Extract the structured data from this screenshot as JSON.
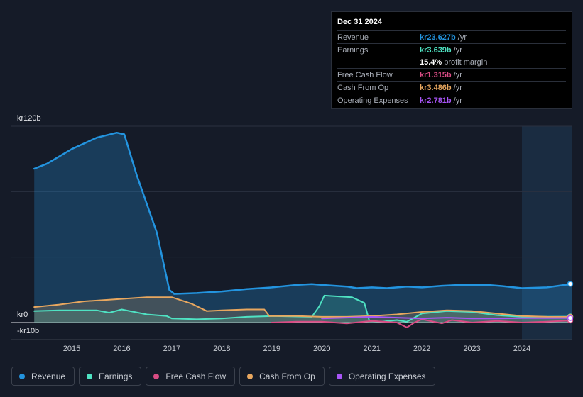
{
  "chart_data": {
    "type": "area",
    "y_tick_labels": [
      "kr120b",
      "kr0",
      "-kr10b"
    ],
    "ylim": [
      -10,
      120
    ],
    "xlim": [
      2014.2,
      2025.0
    ],
    "x_ticks": [
      2015,
      2016,
      2017,
      2018,
      2019,
      2020,
      2021,
      2022,
      2023,
      2024
    ],
    "forecast_from": 2024.0,
    "series": [
      {
        "name": "Revenue",
        "color": "#2394df",
        "points": [
          [
            2014.25,
            94
          ],
          [
            2014.5,
            97
          ],
          [
            2015.0,
            106
          ],
          [
            2015.5,
            113
          ],
          [
            2015.9,
            116
          ],
          [
            2016.05,
            115
          ],
          [
            2016.3,
            90
          ],
          [
            2016.7,
            55
          ],
          [
            2016.95,
            20
          ],
          [
            2017.05,
            17.5
          ],
          [
            2017.5,
            18
          ],
          [
            2018.0,
            19
          ],
          [
            2018.5,
            20.5
          ],
          [
            2019.0,
            21.5
          ],
          [
            2019.5,
            23
          ],
          [
            2019.8,
            23.5
          ],
          [
            2020.0,
            23
          ],
          [
            2020.5,
            22
          ],
          [
            2020.7,
            21
          ],
          [
            2021.0,
            21.5
          ],
          [
            2021.3,
            21
          ],
          [
            2021.7,
            22
          ],
          [
            2022.0,
            21.5
          ],
          [
            2022.4,
            22.5
          ],
          [
            2022.8,
            23
          ],
          [
            2023.3,
            23
          ],
          [
            2023.6,
            22.3
          ],
          [
            2024.0,
            21
          ],
          [
            2024.5,
            21.5
          ],
          [
            2025.0,
            23.627
          ]
        ]
      },
      {
        "name": "Earnings",
        "color": "#4fe3c3",
        "points": [
          [
            2014.25,
            7
          ],
          [
            2014.75,
            7.5
          ],
          [
            2015.5,
            7.5
          ],
          [
            2015.75,
            6
          ],
          [
            2016.0,
            8
          ],
          [
            2016.5,
            5
          ],
          [
            2016.9,
            4
          ],
          [
            2017.0,
            2.5
          ],
          [
            2017.5,
            2
          ],
          [
            2018.0,
            2.5
          ],
          [
            2018.5,
            3.5
          ],
          [
            2019.0,
            4
          ],
          [
            2019.8,
            3.5
          ],
          [
            2019.95,
            10
          ],
          [
            2020.05,
            16.5
          ],
          [
            2020.6,
            15.5
          ],
          [
            2020.85,
            12
          ],
          [
            2020.95,
            1
          ],
          [
            2021.2,
            0.5
          ],
          [
            2021.5,
            1.5
          ],
          [
            2021.7,
            0.5
          ],
          [
            2022.0,
            5.5
          ],
          [
            2022.5,
            7
          ],
          [
            2023.0,
            6.5
          ],
          [
            2023.5,
            4.5
          ],
          [
            2024.0,
            3.5
          ],
          [
            2024.5,
            3.6
          ],
          [
            2025.0,
            3.639
          ]
        ]
      },
      {
        "name": "Free Cash Flow",
        "color": "#d94c84",
        "points": [
          [
            2019.0,
            0
          ],
          [
            2019.5,
            0.5
          ],
          [
            2020.0,
            0.5
          ],
          [
            2020.5,
            -0.5
          ],
          [
            2021.0,
            1
          ],
          [
            2021.5,
            0
          ],
          [
            2021.7,
            -3
          ],
          [
            2021.85,
            0
          ],
          [
            2022.0,
            2
          ],
          [
            2022.4,
            -0.5
          ],
          [
            2022.6,
            1.5
          ],
          [
            2023.0,
            0
          ],
          [
            2023.5,
            1
          ],
          [
            2024.0,
            0
          ],
          [
            2024.5,
            0.5
          ],
          [
            2025.0,
            1.315
          ]
        ]
      },
      {
        "name": "Cash From Op",
        "color": "#e8a75f",
        "points": [
          [
            2014.25,
            9.5
          ],
          [
            2014.75,
            11
          ],
          [
            2015.25,
            13
          ],
          [
            2015.75,
            14
          ],
          [
            2016.25,
            15
          ],
          [
            2016.5,
            15.5
          ],
          [
            2017.0,
            15.5
          ],
          [
            2017.4,
            11.5
          ],
          [
            2017.7,
            7
          ],
          [
            2018.0,
            7.5
          ],
          [
            2018.5,
            8
          ],
          [
            2018.85,
            8
          ],
          [
            2018.95,
            4
          ],
          [
            2019.5,
            4
          ],
          [
            2020.0,
            3.5
          ],
          [
            2020.5,
            3.5
          ],
          [
            2021.0,
            4
          ],
          [
            2021.5,
            5
          ],
          [
            2022.0,
            6.5
          ],
          [
            2022.5,
            7.5
          ],
          [
            2023.0,
            7
          ],
          [
            2023.5,
            5.5
          ],
          [
            2024.0,
            4
          ],
          [
            2024.5,
            3.5
          ],
          [
            2025.0,
            3.486
          ]
        ]
      },
      {
        "name": "Operating Expenses",
        "color": "#a855f7",
        "points": [
          [
            2020.0,
            2.5
          ],
          [
            2020.5,
            3
          ],
          [
            2021.0,
            3.5
          ],
          [
            2021.5,
            3
          ],
          [
            2022.0,
            2.5
          ],
          [
            2022.5,
            3
          ],
          [
            2023.0,
            2.5
          ],
          [
            2023.5,
            2.5
          ],
          [
            2024.0,
            2.7
          ],
          [
            2024.5,
            2.7
          ],
          [
            2025.0,
            2.781
          ]
        ]
      }
    ]
  },
  "tooltip": {
    "date": "Dec 31 2024",
    "rows": [
      {
        "label": "Revenue",
        "value": "kr23.627b",
        "unit": "/yr",
        "color": "#2394df"
      },
      {
        "label": "Earnings",
        "value": "kr3.639b",
        "unit": "/yr",
        "color": "#4fe3c3"
      },
      {
        "label": "",
        "value": "15.4%",
        "unit": "profit margin",
        "color": "#ffffff"
      },
      {
        "label": "Free Cash Flow",
        "value": "kr1.315b",
        "unit": "/yr",
        "color": "#d94c84"
      },
      {
        "label": "Cash From Op",
        "value": "kr3.486b",
        "unit": "/yr",
        "color": "#e8a75f"
      },
      {
        "label": "Operating Expenses",
        "value": "kr2.781b",
        "unit": "/yr",
        "color": "#a855f7"
      }
    ]
  },
  "legend": [
    {
      "label": "Revenue",
      "color": "#2394df"
    },
    {
      "label": "Earnings",
      "color": "#4fe3c3"
    },
    {
      "label": "Free Cash Flow",
      "color": "#d94c84"
    },
    {
      "label": "Cash From Op",
      "color": "#e8a75f"
    },
    {
      "label": "Operating Expenses",
      "color": "#a855f7"
    }
  ]
}
